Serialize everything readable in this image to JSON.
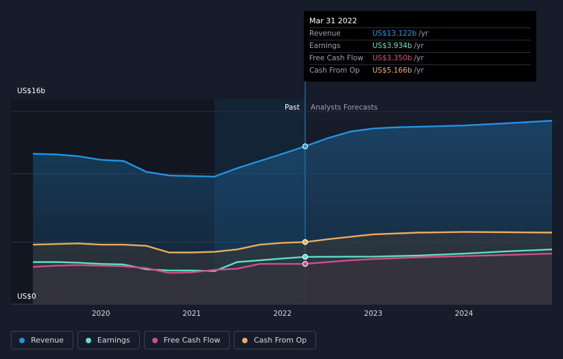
{
  "chart_data": {
    "type": "area",
    "y_axis": {
      "top_label": "US$16b",
      "bottom_label": "US$0",
      "min": 0,
      "max": 16
    },
    "x_axis": {
      "ticks": [
        "2020",
        "2021",
        "2022",
        "2023",
        "2024"
      ],
      "range": [
        2019.25,
        2024.97
      ]
    },
    "past_label": "Past",
    "forecast_label": "Analysts Forecasts",
    "divider_x": 2022.25,
    "series": [
      {
        "name": "Revenue",
        "color": "#2394df",
        "x": [
          2019.25,
          2019.5,
          2019.75,
          2020.0,
          2020.25,
          2020.5,
          2020.75,
          2021.0,
          2021.25,
          2021.5,
          2021.75,
          2022.0,
          2022.25,
          2022.5,
          2022.75,
          2023.0,
          2023.25,
          2023.5,
          2024.0,
          2024.5,
          2024.97
        ],
        "y": [
          12.5,
          12.45,
          12.3,
          12.0,
          11.9,
          11.0,
          10.7,
          10.65,
          10.6,
          11.3,
          11.9,
          12.5,
          13.122,
          13.8,
          14.35,
          14.6,
          14.7,
          14.75,
          14.85,
          15.05,
          15.25
        ]
      },
      {
        "name": "Earnings",
        "color": "#5ce1c4",
        "x": [
          2019.25,
          2019.5,
          2019.75,
          2020.0,
          2020.25,
          2020.5,
          2020.75,
          2021.0,
          2021.25,
          2021.5,
          2021.75,
          2022.0,
          2022.25,
          2023.0,
          2023.5,
          2024.0,
          2024.5,
          2024.97
        ],
        "y": [
          3.5,
          3.5,
          3.45,
          3.35,
          3.3,
          2.9,
          2.8,
          2.8,
          2.75,
          3.5,
          3.65,
          3.8,
          3.934,
          3.95,
          4.05,
          4.2,
          4.4,
          4.55
        ]
      },
      {
        "name": "Free Cash Flow",
        "color": "#d14f89",
        "x": [
          2019.25,
          2019.5,
          2019.75,
          2020.0,
          2020.25,
          2020.5,
          2020.75,
          2021.0,
          2021.25,
          2021.5,
          2021.75,
          2022.0,
          2022.25,
          2022.5,
          2022.75,
          2023.0,
          2023.5,
          2024.0,
          2024.5,
          2024.97
        ],
        "y": [
          3.1,
          3.2,
          3.25,
          3.2,
          3.15,
          3.0,
          2.6,
          2.65,
          2.85,
          2.95,
          3.35,
          3.35,
          3.35,
          3.5,
          3.65,
          3.75,
          3.9,
          4.0,
          4.1,
          4.2
        ]
      },
      {
        "name": "Cash From Op",
        "color": "#e9ae5c",
        "x": [
          2019.25,
          2019.5,
          2019.75,
          2020.0,
          2020.25,
          2020.5,
          2020.75,
          2021.0,
          2021.25,
          2021.5,
          2021.75,
          2022.0,
          2022.25,
          2022.5,
          2022.75,
          2023.0,
          2023.5,
          2024.0,
          2024.5,
          2024.97
        ],
        "y": [
          4.95,
          5.0,
          5.05,
          4.95,
          4.95,
          4.85,
          4.3,
          4.3,
          4.35,
          4.55,
          4.95,
          5.1,
          5.166,
          5.4,
          5.6,
          5.8,
          5.95,
          6.0,
          5.98,
          5.95
        ]
      }
    ]
  },
  "tooltip": {
    "date": "Mar 31 2022",
    "rows": [
      {
        "label": "Revenue",
        "value": "US$13.122b",
        "unit": "/yr",
        "color": "#2394df"
      },
      {
        "label": "Earnings",
        "value": "US$3.934b",
        "unit": "/yr",
        "color": "#5ce1c4"
      },
      {
        "label": "Free Cash Flow",
        "value": "US$3.350b",
        "unit": "/yr",
        "color": "#d14f89"
      },
      {
        "label": "Cash From Op",
        "value": "US$5.166b",
        "unit": "/yr",
        "color": "#e9ae5c"
      }
    ]
  },
  "legend": [
    {
      "label": "Revenue",
      "color": "#2394df"
    },
    {
      "label": "Earnings",
      "color": "#5ce1c4"
    },
    {
      "label": "Free Cash Flow",
      "color": "#d14f89"
    },
    {
      "label": "Cash From Op",
      "color": "#e9ae5c"
    }
  ]
}
